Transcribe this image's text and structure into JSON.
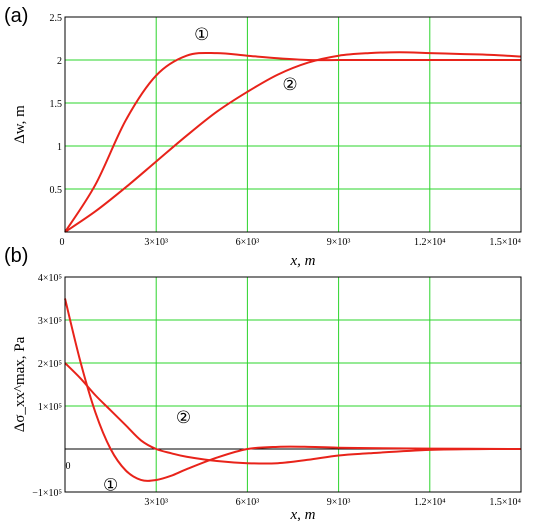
{
  "chart_data": [
    {
      "type": "line",
      "panel_label": "(a)",
      "xlabel": "x, m",
      "ylabel": "Δw, m",
      "xlim": [
        0,
        15000
      ],
      "ylim": [
        0,
        2.5
      ],
      "x_ticks": [
        {
          "value": 3000,
          "label": "3×10³"
        },
        {
          "value": 6000,
          "label": "6×10³"
        },
        {
          "value": 9000,
          "label": "9×10³"
        },
        {
          "value": 12000,
          "label": "1.2×10⁴"
        },
        {
          "value": 15000,
          "label": "1.5×10⁴"
        }
      ],
      "y_ticks": [
        {
          "value": 0.5,
          "label": "0.5"
        },
        {
          "value": 1,
          "label": "1"
        },
        {
          "value": 1.5,
          "label": "1.5"
        },
        {
          "value": 2,
          "label": "2"
        },
        {
          "value": 2.5,
          "label": "2.5"
        }
      ],
      "origin_label": "0",
      "grid": true,
      "series": [
        {
          "marker": "①",
          "x": [
            0,
            1000,
            2000,
            3000,
            4000,
            5000,
            6000,
            7000,
            8000,
            9000,
            10000,
            11000,
            12000,
            13000,
            14000,
            15000
          ],
          "y": [
            0,
            0.55,
            1.3,
            1.82,
            2.05,
            2.08,
            2.05,
            2.02,
            2.0,
            2.0,
            2.0,
            2.0,
            2.0,
            2.0,
            2.0,
            2.0
          ]
        },
        {
          "marker": "②",
          "x": [
            0,
            1000,
            2000,
            3000,
            4000,
            5000,
            6000,
            7000,
            8000,
            9000,
            10000,
            11000,
            12000,
            13000,
            14000,
            15000
          ],
          "y": [
            0,
            0.24,
            0.52,
            0.82,
            1.12,
            1.4,
            1.63,
            1.83,
            1.97,
            2.05,
            2.08,
            2.09,
            2.08,
            2.07,
            2.06,
            2.04
          ]
        }
      ],
      "marker_positions": [
        {
          "marker": "①",
          "x": 4500,
          "y": 2.3
        },
        {
          "marker": "②",
          "x": 7400,
          "y": 1.72
        }
      ]
    },
    {
      "type": "line",
      "panel_label": "(b)",
      "xlabel": "x, m",
      "ylabel": "Δσ_xx^max, Pa",
      "xlim": [
        0,
        15000
      ],
      "ylim": [
        -100000,
        400000
      ],
      "x_ticks": [
        {
          "value": 3000,
          "label": "3×10³"
        },
        {
          "value": 6000,
          "label": "6×10³"
        },
        {
          "value": 9000,
          "label": "9×10³"
        },
        {
          "value": 12000,
          "label": "1.2×10⁴"
        },
        {
          "value": 15000,
          "label": "1.5×10⁴"
        }
      ],
      "y_ticks": [
        {
          "value": -100000,
          "label": "−1×10⁵"
        },
        {
          "value": 100000,
          "label": "1×10⁵"
        },
        {
          "value": 200000,
          "label": "2×10⁵"
        },
        {
          "value": 300000,
          "label": "3×10⁵"
        },
        {
          "value": 400000,
          "label": "4×10⁵"
        }
      ],
      "origin_label": "0",
      "grid": true,
      "series": [
        {
          "marker": "①",
          "x": [
            0,
            500,
            1000,
            1500,
            2000,
            2500,
            3000,
            3500,
            4000,
            5000,
            6000,
            7000,
            8000,
            9000,
            10000,
            12000,
            15000
          ],
          "y": [
            350000,
            205000,
            85000,
            0,
            -50000,
            -72000,
            -72000,
            -62000,
            -47000,
            -20000,
            0,
            5000,
            5000,
            3000,
            2000,
            1000,
            0
          ]
        },
        {
          "marker": "②",
          "x": [
            0,
            500,
            1000,
            1500,
            2000,
            2500,
            3000,
            3500,
            4000,
            5000,
            6000,
            7000,
            8000,
            9000,
            10000,
            12000,
            14000,
            15000
          ],
          "y": [
            200000,
            165000,
            125000,
            90000,
            55000,
            20000,
            0,
            -10000,
            -18000,
            -28000,
            -33000,
            -33000,
            -25000,
            -15000,
            -10000,
            -2000,
            0,
            0
          ]
        }
      ],
      "marker_positions": [
        {
          "marker": "①",
          "x": 1500,
          "y": -82000
        },
        {
          "marker": "②",
          "x": 3900,
          "y": 75000
        }
      ]
    }
  ],
  "style": {
    "line_color": "#e8231a",
    "grid_color": "#2bd42b",
    "axis_color": "#000000"
  }
}
